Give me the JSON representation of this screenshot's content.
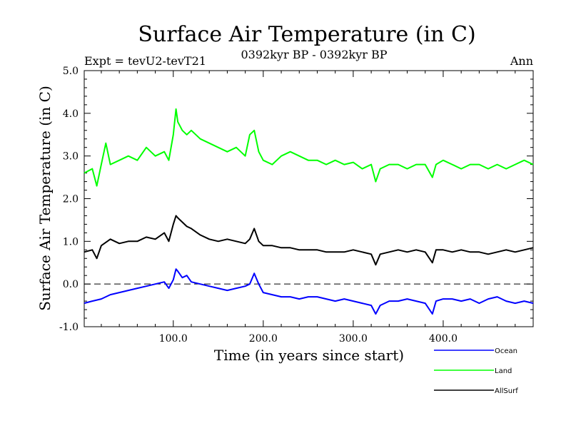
{
  "chart_data": {
    "type": "line",
    "title": "Surface Air Temperature (in C)",
    "subtitle": "0392kyr BP - 0392kyr BP",
    "expt_label": "Expt = tevU2-tevT21",
    "season_label": "Ann",
    "xlabel": "Time (in years since start)",
    "ylabel": "Surface Air Temperature (in C)",
    "xlim": [
      1,
      500
    ],
    "ylim": [
      -1.0,
      5.0
    ],
    "xticks": [
      100,
      200,
      300,
      400
    ],
    "xtick_labels": [
      "100.0",
      "200.0",
      "300.0",
      "400.0"
    ],
    "yticks": [
      -1,
      0,
      1,
      2,
      3,
      4,
      5
    ],
    "ytick_labels": [
      "-1.0",
      "0.0",
      "1.0",
      "2.0",
      "3.0",
      "4.0",
      "5.0"
    ],
    "zero_line": 0.0,
    "legend_position": "bottom-right, outside plot",
    "series": [
      {
        "name": "Ocean",
        "color": "#0000ff",
        "x": [
          1,
          10,
          20,
          30,
          40,
          50,
          60,
          70,
          80,
          90,
          95,
          100,
          103,
          105,
          110,
          115,
          120,
          130,
          140,
          150,
          160,
          170,
          180,
          185,
          190,
          195,
          200,
          210,
          220,
          230,
          240,
          250,
          260,
          270,
          280,
          290,
          300,
          310,
          320,
          325,
          330,
          340,
          350,
          360,
          370,
          380,
          388,
          392,
          400,
          410,
          420,
          430,
          440,
          450,
          460,
          470,
          480,
          490,
          500
        ],
        "values": [
          -0.45,
          -0.4,
          -0.35,
          -0.25,
          -0.2,
          -0.15,
          -0.1,
          -0.05,
          0.0,
          0.05,
          -0.1,
          0.1,
          0.35,
          0.3,
          0.15,
          0.2,
          0.05,
          0.0,
          -0.05,
          -0.1,
          -0.15,
          -0.1,
          -0.05,
          0.0,
          0.25,
          0.0,
          -0.2,
          -0.25,
          -0.3,
          -0.3,
          -0.35,
          -0.3,
          -0.3,
          -0.35,
          -0.4,
          -0.35,
          -0.4,
          -0.45,
          -0.5,
          -0.7,
          -0.5,
          -0.4,
          -0.4,
          -0.35,
          -0.4,
          -0.45,
          -0.7,
          -0.4,
          -0.35,
          -0.35,
          -0.4,
          -0.35,
          -0.45,
          -0.35,
          -0.3,
          -0.4,
          -0.45,
          -0.4,
          -0.45
        ]
      },
      {
        "name": "Land",
        "color": "#00ff00",
        "x": [
          1,
          10,
          15,
          20,
          25,
          30,
          40,
          50,
          60,
          70,
          80,
          90,
          95,
          100,
          103,
          105,
          110,
          115,
          120,
          130,
          140,
          150,
          160,
          170,
          180,
          185,
          190,
          195,
          200,
          210,
          220,
          230,
          240,
          250,
          260,
          270,
          280,
          290,
          300,
          310,
          320,
          325,
          330,
          340,
          350,
          360,
          370,
          380,
          388,
          392,
          400,
          410,
          420,
          430,
          440,
          450,
          460,
          470,
          480,
          490,
          500
        ],
        "values": [
          2.6,
          2.7,
          2.3,
          2.8,
          3.3,
          2.8,
          2.9,
          3.0,
          2.9,
          3.2,
          3.0,
          3.1,
          2.9,
          3.5,
          4.1,
          3.8,
          3.6,
          3.5,
          3.6,
          3.4,
          3.3,
          3.2,
          3.1,
          3.2,
          3.0,
          3.5,
          3.6,
          3.1,
          2.9,
          2.8,
          3.0,
          3.1,
          3.0,
          2.9,
          2.9,
          2.8,
          2.9,
          2.8,
          2.85,
          2.7,
          2.8,
          2.4,
          2.7,
          2.8,
          2.8,
          2.7,
          2.8,
          2.8,
          2.5,
          2.8,
          2.9,
          2.8,
          2.7,
          2.8,
          2.8,
          2.7,
          2.8,
          2.7,
          2.8,
          2.9,
          2.8
        ]
      },
      {
        "name": "AllSurf",
        "color": "#000000",
        "x": [
          1,
          10,
          15,
          20,
          30,
          40,
          50,
          60,
          70,
          80,
          90,
          95,
          100,
          103,
          105,
          110,
          115,
          120,
          130,
          140,
          150,
          160,
          170,
          180,
          185,
          190,
          195,
          200,
          210,
          220,
          230,
          240,
          250,
          260,
          270,
          280,
          290,
          300,
          310,
          320,
          325,
          330,
          340,
          350,
          360,
          370,
          380,
          388,
          392,
          400,
          410,
          420,
          430,
          440,
          450,
          460,
          470,
          480,
          490,
          500
        ],
        "values": [
          0.75,
          0.8,
          0.6,
          0.9,
          1.05,
          0.95,
          1.0,
          1.0,
          1.1,
          1.05,
          1.2,
          1.0,
          1.4,
          1.6,
          1.55,
          1.45,
          1.35,
          1.3,
          1.15,
          1.05,
          1.0,
          1.05,
          1.0,
          0.95,
          1.05,
          1.3,
          1.0,
          0.9,
          0.9,
          0.85,
          0.85,
          0.8,
          0.8,
          0.8,
          0.75,
          0.75,
          0.75,
          0.8,
          0.75,
          0.7,
          0.45,
          0.7,
          0.75,
          0.8,
          0.75,
          0.8,
          0.75,
          0.5,
          0.8,
          0.8,
          0.75,
          0.8,
          0.75,
          0.75,
          0.7,
          0.75,
          0.8,
          0.75,
          0.8,
          0.85
        ]
      }
    ]
  }
}
